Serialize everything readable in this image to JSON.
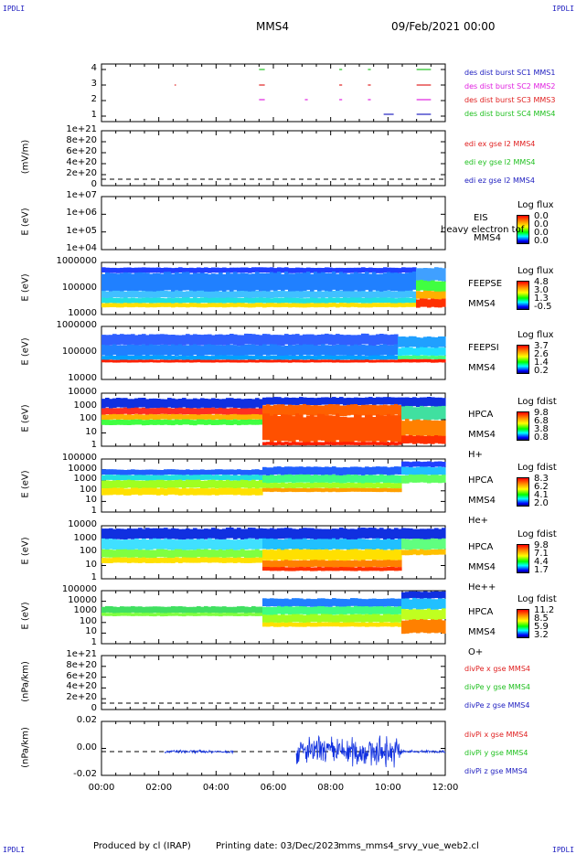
{
  "header": {
    "corner_tl": "IPDLI",
    "corner_tr": "IPDLI",
    "corner_bl": "IPDLI",
    "corner_br": "IPDLI",
    "spacecraft": "MMS4",
    "date": "09/Feb/2021 00:00"
  },
  "footer": {
    "produced_by": "Produced by cl (IRAP)",
    "printing_date": "Printing date: 03/Dec/2023",
    "script": "mms_mms4_srvy_vue_web2.cl"
  },
  "x_ticks": [
    "00:00",
    "02:00",
    "04:00",
    "06:00",
    "08:00",
    "10:00",
    "12:00"
  ],
  "panels": [
    {
      "id": "burst",
      "ylabel": "",
      "yticks": [
        "4",
        "3",
        "2",
        "1"
      ],
      "legend": [
        {
          "text": "des dist burst SC1 MMS1",
          "color": "#2020c0"
        },
        {
          "text": "des dist burst SC2 MMS2",
          "color": "#e020e0"
        },
        {
          "text": "des dist burst SC3 MMS3",
          "color": "#e02020"
        },
        {
          "text": "des dist burst SC4 MMS4",
          "color": "#20c020"
        }
      ]
    },
    {
      "id": "edi",
      "ylabel": "(mV/m)",
      "yticks": [
        "1e+21",
        "8e+20",
        "6e+20",
        "4e+20",
        "2e+20",
        "0"
      ],
      "legend": [
        {
          "text": "edi ex gse l2 MMS4",
          "color": "#e02020"
        },
        {
          "text": "edi ey gse l2 MMS4",
          "color": "#20c020"
        },
        {
          "text": "edi ez gse l2 MMS4",
          "color": "#2020c0"
        }
      ]
    },
    {
      "id": "eis",
      "ylabel": "E (eV)",
      "yticks": [
        "1e+07",
        "1e+06",
        "1e+05",
        "1e+04"
      ],
      "tags": [
        "EIS",
        "MMS4"
      ],
      "overlay": "heavy electron tof",
      "cb_title": "Log flux",
      "cb_values": [
        "0.0",
        "0.0",
        "0.0",
        "0.0"
      ]
    },
    {
      "id": "feepse",
      "ylabel": "E (eV)",
      "yticks": [
        "1000000",
        "100000",
        "10000"
      ],
      "tags": [
        "FEEPSE",
        "MMS4"
      ],
      "cb_title": "Log flux",
      "cb_values": [
        "4.8",
        "3.0",
        "1.3",
        "-0.5"
      ]
    },
    {
      "id": "feepsi",
      "ylabel": "E (eV)",
      "yticks": [
        "1000000",
        "100000",
        "10000"
      ],
      "tags": [
        "FEEPSI",
        "MMS4"
      ],
      "cb_title": "Log flux",
      "cb_values": [
        "3.7",
        "2.6",
        "1.4",
        "0.2"
      ]
    },
    {
      "id": "hpca_h",
      "ylabel": "E (eV)",
      "yticks": [
        "10000",
        "1000",
        "100",
        "10",
        "1"
      ],
      "tags": [
        "HPCA",
        "MMS4",
        "H+"
      ],
      "cb_title": "Log fdist",
      "cb_values": [
        "9.8",
        "6.8",
        "3.8",
        "0.8"
      ]
    },
    {
      "id": "hpca_he",
      "ylabel": "E (eV)",
      "yticks": [
        "100000",
        "10000",
        "1000",
        "100",
        "10",
        "1"
      ],
      "tags": [
        "HPCA",
        "MMS4",
        "He+"
      ],
      "cb_title": "Log fdist",
      "cb_values": [
        "8.3",
        "6.2",
        "4.1",
        "2.0"
      ]
    },
    {
      "id": "hpca_hepp",
      "ylabel": "E (eV)",
      "yticks": [
        "10000",
        "1000",
        "100",
        "10",
        "1"
      ],
      "tags": [
        "HPCA",
        "MMS4",
        "He++"
      ],
      "cb_title": "Log fdist",
      "cb_values": [
        "9.8",
        "7.1",
        "4.4",
        "1.7"
      ]
    },
    {
      "id": "hpca_o",
      "ylabel": "E (eV)",
      "yticks": [
        "100000",
        "10000",
        "1000",
        "100",
        "10",
        "1"
      ],
      "tags": [
        "HPCA",
        "MMS4",
        "O+"
      ],
      "cb_title": "Log fdist",
      "cb_values": [
        "11.2",
        "8.5",
        "5.9",
        "3.2"
      ]
    },
    {
      "id": "divpe",
      "ylabel": "(nPa/km)",
      "yticks": [
        "1e+21",
        "8e+20",
        "6e+20",
        "4e+20",
        "2e+20",
        "0"
      ],
      "legend": [
        {
          "text": "divPe x gse MMS4",
          "color": "#e02020"
        },
        {
          "text": "divPe y gse MMS4",
          "color": "#20c020"
        },
        {
          "text": "divPe z gse MMS4",
          "color": "#2020c0"
        }
      ]
    },
    {
      "id": "divpi",
      "ylabel": "(nPa/km)",
      "yticks": [
        "0.02",
        "0.00",
        "-0.02"
      ],
      "legend": [
        {
          "text": "divPi x gse MMS4",
          "color": "#e02020"
        },
        {
          "text": "divPi y gse MMS4",
          "color": "#20c020"
        },
        {
          "text": "divPi z gse MMS4",
          "color": "#2020c0"
        }
      ]
    }
  ],
  "chart_data": {
    "type": "heatmap",
    "title": "MMS4  09/Feb/2021 00:00",
    "x_range": [
      "00:00",
      "12:00"
    ],
    "burst_intervals": {
      "SC1_MMS1": [
        [
          9.85,
          10.2
        ],
        [
          11.0,
          11.5
        ]
      ],
      "SC2_MMS2": [
        [
          5.5,
          5.7
        ],
        [
          7.1,
          7.2
        ],
        [
          8.3,
          8.4
        ],
        [
          9.3,
          9.4
        ],
        [
          11.0,
          11.5
        ]
      ],
      "SC3_MMS3": [
        [
          2.55,
          2.6
        ],
        [
          5.5,
          5.7
        ],
        [
          8.3,
          8.4
        ],
        [
          9.3,
          9.4
        ],
        [
          11.0,
          11.5
        ]
      ],
      "SC4_MMS4": [
        [
          5.5,
          5.7
        ],
        [
          8.3,
          8.4
        ],
        [
          9.3,
          9.4
        ],
        [
          11.0,
          11.5
        ]
      ]
    },
    "divPi_z_activity": [
      [
        2.2,
        4.6,
        0.001
      ],
      [
        6.8,
        10.5,
        0.01
      ],
      [
        10.5,
        12.0,
        0.001
      ]
    ]
  }
}
